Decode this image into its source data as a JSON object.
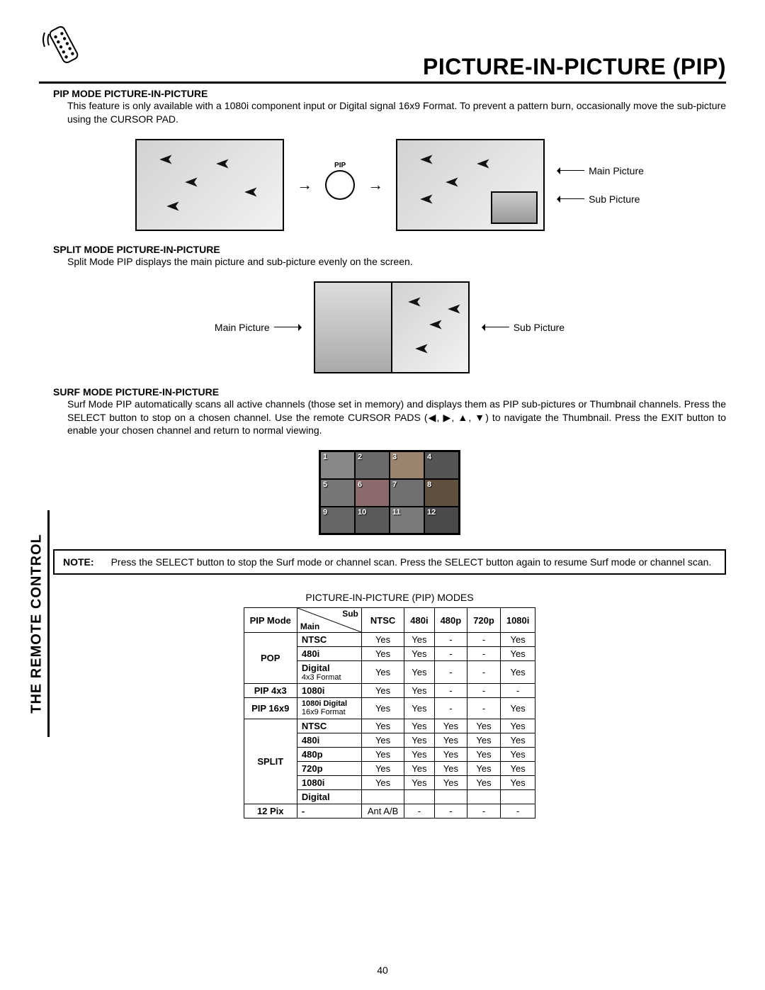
{
  "page_title": "PICTURE-IN-PICTURE (PIP)",
  "side_tab": "THE REMOTE CONTROL",
  "page_number": "40",
  "icon_name": "remote-control-icon",
  "sections": {
    "pip": {
      "heading": "PIP MODE PICTURE-IN-PICTURE",
      "body": "This feature is only available with a 1080i component input or Digital signal 16x9 Format.  To prevent a pattern burn, occasionally move the sub-picture using the CURSOR PAD.",
      "btn_label": "PIP",
      "callout_main": "Main Picture",
      "callout_sub": "Sub Picture"
    },
    "split": {
      "heading": "SPLIT MODE PICTURE-IN-PICTURE",
      "body": "Split Mode PIP displays the main picture and sub-picture evenly on the screen.",
      "callout_main": "Main Picture",
      "callout_sub": "Sub Picture"
    },
    "surf": {
      "heading": "SURF MODE PICTURE-IN-PICTURE",
      "body": "Surf Mode PIP automatically scans all active channels (those set in memory) and displays them as PIP sub-pictures or Thumbnail channels.  Press the SELECT button to stop on a chosen channel.  Use the remote CURSOR PADS (◀, ▶, ▲, ▼) to navigate the Thumbnail.  Press the EXIT button to enable your chosen channel and return to normal viewing.",
      "thumbs": [
        "1",
        "2",
        "3",
        "4",
        "5",
        "6",
        "7",
        "8",
        "9",
        "10",
        "11",
        "12"
      ]
    }
  },
  "note": {
    "label": "NOTE:",
    "text": "Press the SELECT button to stop the Surf mode or channel scan.  Press the SELECT button again to resume Surf mode or channel scan."
  },
  "table": {
    "title": "PICTURE-IN-PICTURE (PIP) MODES",
    "corner_top": "Sub",
    "corner_bottom": "Main",
    "pip_mode_label": "PIP Mode",
    "sub_headers": [
      "NTSC",
      "480i",
      "480p",
      "720p",
      "1080i"
    ],
    "rows": [
      {
        "mode": "POP",
        "main": "NTSC",
        "vals": [
          "Yes",
          "Yes",
          "-",
          "-",
          "Yes"
        ]
      },
      {
        "mode": "",
        "main": "480i",
        "vals": [
          "Yes",
          "Yes",
          "-",
          "-",
          "Yes"
        ]
      },
      {
        "mode": "",
        "main": "Digital",
        "note": "4x3 Format",
        "vals": [
          "Yes",
          "Yes",
          "-",
          "-",
          "Yes"
        ]
      },
      {
        "mode": "PIP 4x3",
        "main": "1080i",
        "vals": [
          "Yes",
          "Yes",
          "-",
          "-",
          "-"
        ]
      },
      {
        "mode": "PIP 16x9",
        "main": "1080i Digital",
        "note": "16x9 Format",
        "mainfont": "small",
        "vals": [
          "Yes",
          "Yes",
          "-",
          "-",
          "Yes"
        ]
      },
      {
        "mode": "SPLIT",
        "main": "NTSC",
        "vals": [
          "Yes",
          "Yes",
          "Yes",
          "Yes",
          "Yes"
        ]
      },
      {
        "mode": "",
        "main": "480i",
        "vals": [
          "Yes",
          "Yes",
          "Yes",
          "Yes",
          "Yes"
        ]
      },
      {
        "mode": "",
        "main": "480p",
        "vals": [
          "Yes",
          "Yes",
          "Yes",
          "Yes",
          "Yes"
        ]
      },
      {
        "mode": "",
        "main": "720p",
        "vals": [
          "Yes",
          "Yes",
          "Yes",
          "Yes",
          "Yes"
        ]
      },
      {
        "mode": "",
        "main": "1080i",
        "vals": [
          "Yes",
          "Yes",
          "Yes",
          "Yes",
          "Yes"
        ]
      },
      {
        "mode": "",
        "main": "Digital",
        "vals": [
          "",
          "",
          "",
          "",
          ""
        ]
      },
      {
        "mode": "12 Pix",
        "main": "-",
        "vals": [
          "Ant A/B",
          "-",
          "-",
          "-",
          "-"
        ]
      }
    ]
  },
  "colors": {
    "text": "#000000",
    "border": "#000000",
    "background": "#ffffff",
    "screen_grad_a": "#d2d2d2",
    "screen_grad_b": "#f2f2f2"
  }
}
